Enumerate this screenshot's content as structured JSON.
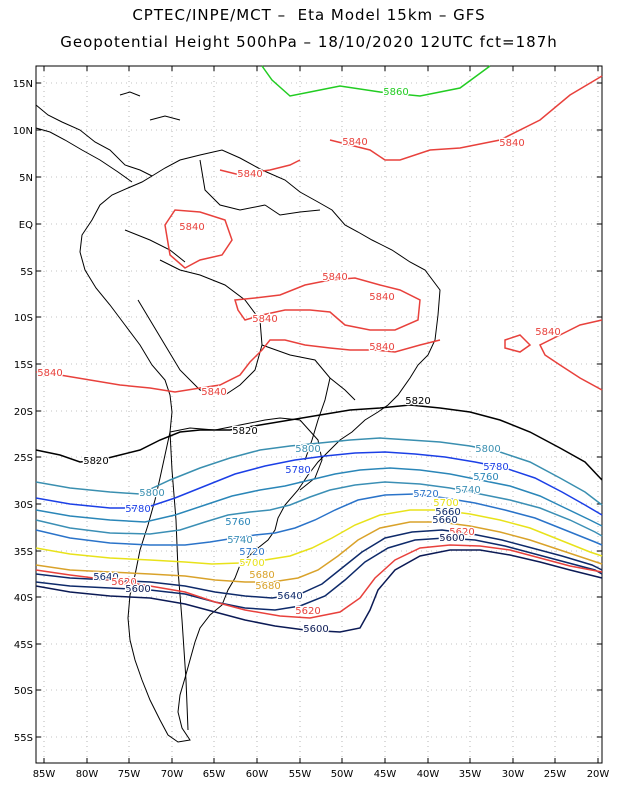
{
  "header": {
    "line1": "CPTEC/INPE/MCT –  Eta Model 15km – GFS",
    "line2": "Geopotential Height 500hPa – 18/10/2020 12UTC fct=187h"
  },
  "axes": {
    "lat_labels": [
      "15N",
      "10N",
      "5N",
      "EQ",
      "5S",
      "10S",
      "15S",
      "20S",
      "25S",
      "30S",
      "35S",
      "40S",
      "45S",
      "50S",
      "55S"
    ],
    "lon_labels": [
      "85W",
      "80W",
      "75W",
      "70W",
      "65W",
      "60W",
      "55W",
      "50W",
      "45W",
      "40W",
      "35W",
      "30W",
      "25W",
      "20W"
    ]
  },
  "contour_colors": {
    "5860": "#22cc22",
    "5840": "#e8413c",
    "5820": "#000000",
    "5800": "#3a8fb0",
    "5780": "#1b3fe6",
    "5760": "#2a86b8",
    "5740": "#3b8fb5",
    "5720": "#2a73c9",
    "5700": "#e8e21a",
    "5680": "#d9a22a",
    "5660": "#0e2a6a",
    "5640": "#0e2a6a",
    "5620": "#e8413c",
    "5600": "#0b1a55"
  },
  "contour_labels": [
    {
      "text": "5860",
      "level": "5860"
    },
    {
      "text": "5840",
      "level": "5840"
    },
    {
      "text": "5840",
      "level": "5840"
    },
    {
      "text": "5840",
      "level": "5840"
    },
    {
      "text": "5840",
      "level": "5840"
    },
    {
      "text": "5840",
      "level": "5840"
    },
    {
      "text": "5840",
      "level": "5840"
    },
    {
      "text": "5840",
      "level": "5840"
    },
    {
      "text": "5840",
      "level": "5840"
    },
    {
      "text": "5840",
      "level": "5840"
    },
    {
      "text": "5840",
      "level": "5840"
    },
    {
      "text": "5840",
      "level": "5840"
    },
    {
      "text": "5820",
      "level": "5820"
    },
    {
      "text": "5820",
      "level": "5820"
    },
    {
      "text": "5820",
      "level": "5820"
    },
    {
      "text": "5800",
      "level": "5800"
    },
    {
      "text": "5800",
      "level": "5800"
    },
    {
      "text": "5800",
      "level": "5800"
    },
    {
      "text": "5780",
      "level": "5780"
    },
    {
      "text": "5780",
      "level": "5780"
    },
    {
      "text": "5780",
      "level": "5780"
    },
    {
      "text": "5760",
      "level": "5760"
    },
    {
      "text": "5760",
      "level": "5760"
    },
    {
      "text": "5740",
      "level": "5740"
    },
    {
      "text": "5740",
      "level": "5740"
    },
    {
      "text": "5720",
      "level": "5720"
    },
    {
      "text": "5720",
      "level": "5720"
    },
    {
      "text": "5700",
      "level": "5700"
    },
    {
      "text": "5700",
      "level": "5700"
    },
    {
      "text": "5680",
      "level": "5680"
    },
    {
      "text": "5680",
      "level": "5680"
    },
    {
      "text": "5660",
      "level": "5660"
    },
    {
      "text": "5640",
      "level": "5640"
    },
    {
      "text": "5640",
      "level": "5640"
    },
    {
      "text": "5620",
      "level": "5620"
    },
    {
      "text": "5620",
      "level": "5620"
    },
    {
      "text": "5620",
      "level": "5620"
    },
    {
      "text": "5600",
      "level": "5600"
    },
    {
      "text": "5600",
      "level": "5600"
    },
    {
      "text": "5600",
      "level": "5600"
    },
    {
      "text": "5660",
      "level": "5660"
    }
  ]
}
